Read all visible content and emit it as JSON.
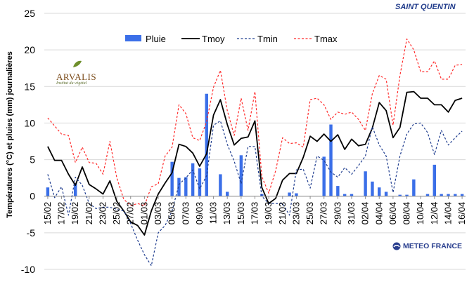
{
  "station": "SAINT QUENTIN",
  "logos": {
    "arvalis": "ARVALIS",
    "arvalis_sub": "Institut du végétal",
    "meteo": "METEO FRANCE"
  },
  "colors": {
    "pluie": "#3b6fe8",
    "tmoy": "#000000",
    "tmin": "#1f3d8f",
    "tmax": "#ff2a2a"
  },
  "chart_data": {
    "type": "bar+line",
    "ylabel": "Températures (°C) et pluies (mm) journalières",
    "ylim": [
      -10,
      25
    ],
    "yticks": [
      -10,
      -5,
      0,
      5,
      10,
      15,
      20,
      25
    ],
    "grid": true,
    "legend_position": "top",
    "x": [
      "15/02",
      "16/02",
      "17/02",
      "18/02",
      "19/02",
      "20/02",
      "21/02",
      "22/02",
      "23/02",
      "24/02",
      "25/02",
      "26/02",
      "27/02",
      "28/02",
      "01/03",
      "02/03",
      "03/03",
      "04/03",
      "05/03",
      "06/03",
      "07/03",
      "08/03",
      "09/03",
      "10/03",
      "11/03",
      "12/03",
      "13/03",
      "14/03",
      "15/03",
      "16/03",
      "17/03",
      "18/03",
      "19/03",
      "20/03",
      "21/03",
      "22/03",
      "23/03",
      "24/03",
      "25/03",
      "26/03",
      "27/03",
      "28/03",
      "29/03",
      "30/03",
      "31/03",
      "01/04",
      "02/04",
      "03/04",
      "04/04",
      "05/04",
      "06/04",
      "07/04",
      "08/04",
      "09/04",
      "10/04",
      "11/04",
      "12/04",
      "13/04",
      "14/04",
      "15/04",
      "16/04"
    ],
    "xtick_labels": [
      "15/02",
      "17/02",
      "19/02",
      "21/02",
      "23/02",
      "25/02",
      "27/02",
      "01/03",
      "03/03",
      "05/03",
      "07/03",
      "09/03",
      "11/03",
      "13/03",
      "15/03",
      "17/03",
      "19/03",
      "21/03",
      "23/03",
      "25/03",
      "27/03",
      "29/03",
      "31/03",
      "02/04",
      "04/04",
      "06/04",
      "08/04",
      "10/04",
      "12/04",
      "14/04",
      "16/04"
    ],
    "series": [
      {
        "name": "Pluie",
        "type": "bar",
        "values": [
          1.2,
          0,
          0,
          0,
          1.8,
          0,
          0,
          0,
          0,
          0,
          0,
          0,
          0,
          0,
          0,
          0,
          0,
          0,
          4.7,
          2.5,
          2.6,
          4.5,
          3.8,
          14,
          0,
          3,
          0.6,
          0,
          5.6,
          0,
          0,
          0.3,
          0,
          0,
          0,
          0.5,
          0.4,
          0,
          0,
          0,
          5.4,
          9.8,
          1.4,
          0.3,
          0.3,
          0,
          3.4,
          2,
          1.2,
          0.6,
          0,
          0.2,
          0.2,
          2.3,
          0,
          0.3,
          4.3,
          0.3,
          0.3,
          0.3,
          0.3
        ]
      },
      {
        "name": "Tmoy",
        "type": "line",
        "values": [
          6.8,
          4.9,
          4.9,
          3,
          1.5,
          4,
          1.6,
          1,
          0.3,
          2.1,
          -0.7,
          -2,
          -3.5,
          -4,
          -5.3,
          -2,
          0.3,
          1.8,
          3.2,
          7.1,
          6.8,
          5.9,
          4.1,
          5.8,
          11.1,
          13.2,
          9.8,
          7,
          7.9,
          8.1,
          10.3,
          1.2,
          -1,
          -0.3,
          2.2,
          3.1,
          3.1,
          5.3,
          8.2,
          7.5,
          8.5,
          7.5,
          8.4,
          6.4,
          7.8,
          6.9,
          7.1,
          9.3,
          12.8,
          11.7,
          8,
          9.4,
          14.2,
          14.3,
          13.4,
          13.4,
          12.5,
          12.5,
          11.5,
          13.1,
          13.4
        ]
      },
      {
        "name": "Tmin",
        "type": "line",
        "values": [
          3,
          -0.2,
          1.3,
          -2.6,
          2.6,
          1.5,
          -1,
          -1.7,
          -1.5,
          -1.5,
          -1.8,
          -2,
          -3.7,
          -6,
          -8,
          -9.5,
          -5,
          -4,
          -2,
          1.6,
          2.5,
          3.6,
          1,
          2.8,
          9.7,
          10.3,
          7.1,
          4.8,
          1.7,
          6.8,
          6.8,
          0,
          -1,
          -1,
          -1,
          -2.6,
          3.6,
          3.7,
          1.1,
          5.5,
          4.9,
          3.3,
          2.6,
          3.9,
          3,
          4.2,
          5.5,
          9.5,
          7,
          5.5,
          0.5,
          5.5,
          8.5,
          9.9,
          10,
          8.7,
          5.7,
          9,
          7,
          8,
          8.9
        ]
      },
      {
        "name": "Tmax",
        "type": "line",
        "values": [
          10.7,
          9.6,
          8.5,
          8.3,
          4.6,
          6.7,
          4.6,
          4.5,
          3,
          7.5,
          2.5,
          -0.4,
          -1.3,
          -1,
          -1.3,
          1.3,
          1.7,
          5.5,
          6.7,
          12.5,
          11.3,
          8,
          7.6,
          10.2,
          14.9,
          17.2,
          11.7,
          8.3,
          13.4,
          9,
          14.3,
          2.7,
          0.4,
          3.5,
          8,
          7.2,
          7.3,
          6.7,
          13.2,
          13.4,
          12.5,
          10.5,
          11.5,
          11.2,
          11.5,
          10.5,
          9,
          14,
          16.5,
          16,
          9.7,
          16.5,
          21.5,
          20,
          17,
          17,
          18.5,
          16,
          16,
          17.9,
          18
        ]
      }
    ]
  }
}
